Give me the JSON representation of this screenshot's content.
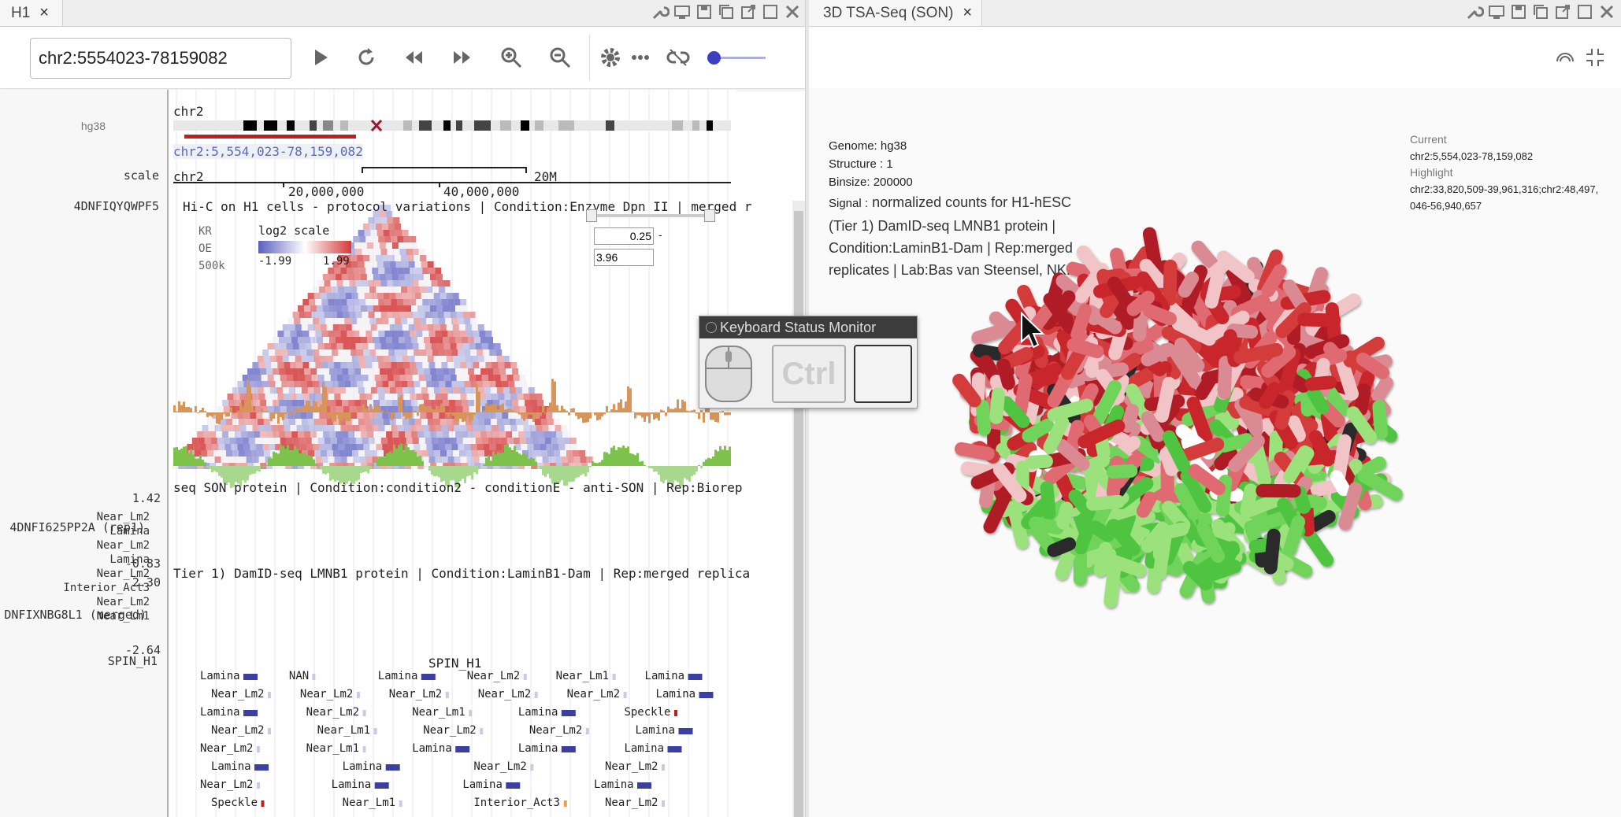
{
  "left_tab": {
    "title": "H1",
    "close": "×"
  },
  "right_tab": {
    "title": "3D TSA-Seq (SON)",
    "close": "×"
  },
  "toolbar": {
    "locus": "chr2:5554023-78159082"
  },
  "ideogram": {
    "genome": "hg38",
    "chrom": "chr2",
    "locus_label": "chr2:5,554,023-78,159,082"
  },
  "ruler": {
    "label": "scale",
    "chrom": "chr2",
    "ticks": [
      "20,000,000",
      "40,000,000"
    ],
    "span": "20M"
  },
  "hic": {
    "track_name": "4DNFIQYQWPF5",
    "title": "Hi-C on H1 cells - protocol variations | Condition:Enzyme Dpn II | merged r",
    "norm": "KR",
    "mode": "OE",
    "res": "500k",
    "scale_title": "log2 scale",
    "scale_min": "-1.99",
    "scale_max": "1.99",
    "range_min": "0.25",
    "range_max": "3.96",
    "range_dash": "-"
  },
  "son": {
    "track_name": "4DNFI625PP2A (rep1)",
    "max": "1.42",
    "min": "-0.83",
    "title": "seq SON protein | Condition:condition2 - conditionE - anti-SON | Rep:Biorep"
  },
  "damid": {
    "track_name": "DNFIXNBG8L1 (merged)",
    "max": "2.30",
    "min": "-2.64",
    "title": "Tier 1) DamID-seq LMNB1 protein | Condition:LaminB1-Dam | Rep:merged replica"
  },
  "spin": {
    "track_label": "SPIN_H1",
    "title": "SPIN_H1",
    "row_labels": [
      "Near_Lm2",
      "Lamina",
      "Near_Lm2",
      "Lamina",
      "Near_Lm2",
      "Interior_Act3",
      "Near_Lm2",
      "Near_Lm1"
    ],
    "rows": [
      [
        "Lamina",
        "NAN",
        "Lamina",
        "Near_Lm2",
        "Near_Lm1",
        "Lamina"
      ],
      [
        "Near_Lm2",
        "Near_Lm2",
        "Near_Lm2",
        "Near_Lm2",
        "Near_Lm2",
        "Lamina"
      ],
      [
        "Lamina",
        "Near_Lm2",
        "Near_Lm1",
        "Lamina",
        "Speckle"
      ],
      [
        "Near_Lm2",
        "Near_Lm1",
        "Near_Lm2",
        "Near_Lm2",
        "Lamina"
      ],
      [
        "Near_Lm2",
        "Near_Lm1",
        "Lamina",
        "Lamina",
        "Lamina"
      ],
      [
        "Lamina",
        "Lamina",
        "Near_Lm2",
        "Near_Lm2"
      ],
      [
        "Near_Lm2",
        "Lamina",
        "Lamina",
        "Lamina"
      ],
      [
        "Speckle",
        "Near_Lm1",
        "Interior_Act3",
        "Near_Lm2"
      ]
    ]
  },
  "info": {
    "genome": "Genome: hg38",
    "structure": "Structure : 1",
    "binsize": "Binsize: 200000",
    "signal_label": "Signal :",
    "signal": "normalized counts for H1-hESC (Tier 1) DamID-seq LMNB1 protein | Condition:LaminB1-Dam | Rep:merged replicates | Lab:Bas van Steensel, NKI"
  },
  "status": {
    "current_label": "Current",
    "current": "chr2:5,554,023-78,159,082",
    "highlight_label": "Highlight",
    "highlight": "chr2:33,820,509-39,961,316;chr2:48,497,046-56,940,657"
  },
  "keyboard_monitor": {
    "title": "Keyboard Status Monitor",
    "ctrl": "Ctrl"
  },
  "colors": {
    "accent": "#3b3fc1",
    "hic_red": "#d43a3a",
    "hic_blue": "#5a5fc0",
    "son": "#d8955a",
    "damid": "#7dc24b",
    "lamina": "#3b3fa0",
    "selection": "#c0201d"
  }
}
